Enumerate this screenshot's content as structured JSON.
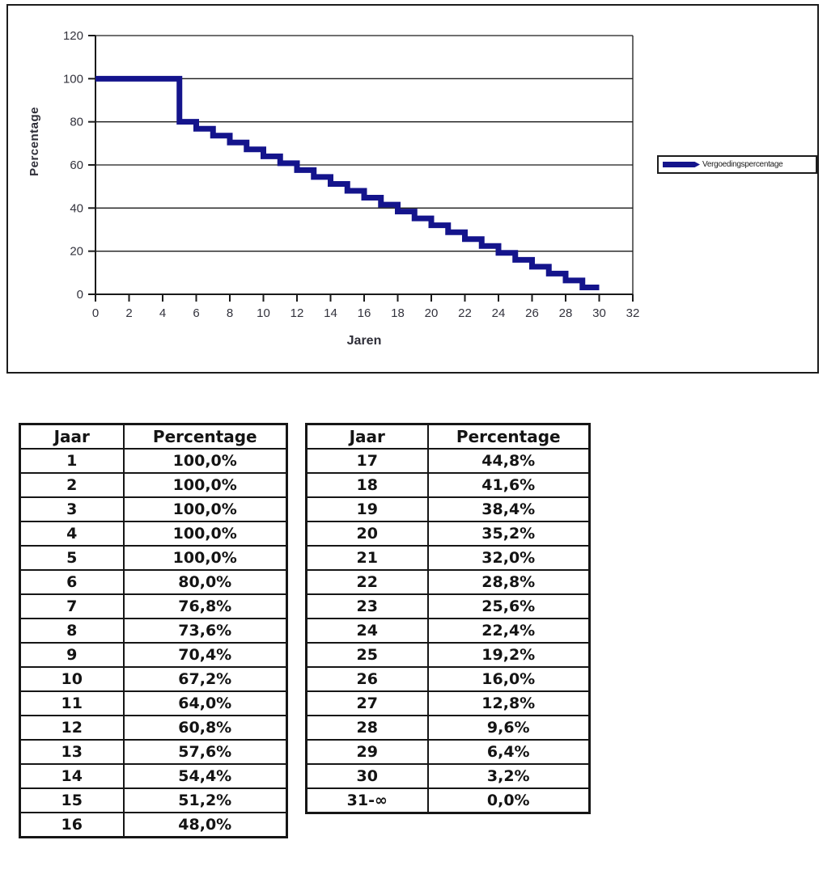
{
  "colors": {
    "series": "#14148C",
    "axis": "#1a1a1a",
    "tick_text": "#33333d"
  },
  "chart": {
    "y_axis_title": "Percentage",
    "x_axis_title": "Jaren",
    "legend_label": "Vergoedingspercentage"
  },
  "chart_data": {
    "type": "line",
    "title": "",
    "xlabel": "Jaren",
    "ylabel": "Percentage",
    "legend": [
      "Vergoedingspercentage"
    ],
    "legend_position": "right",
    "grid": true,
    "xlim": [
      0,
      32
    ],
    "ylim": [
      0,
      120
    ],
    "x_ticks": [
      0,
      2,
      4,
      6,
      8,
      10,
      12,
      14,
      16,
      18,
      20,
      22,
      24,
      26,
      28,
      30,
      32
    ],
    "y_ticks": [
      0,
      20,
      40,
      60,
      80,
      100,
      120
    ],
    "series": [
      {
        "name": "Vergoedingspercentage",
        "step": true,
        "values_by_year": [
          100,
          100,
          100,
          100,
          100,
          80,
          76.8,
          73.6,
          70.4,
          67.2,
          64,
          60.8,
          57.6,
          54.4,
          51.2,
          48,
          44.8,
          41.6,
          38.4,
          35.2,
          32,
          28.8,
          25.6,
          22.4,
          19.2,
          16,
          12.8,
          9.6,
          6.4,
          3.2
        ]
      }
    ]
  },
  "tables": [
    {
      "headers": [
        "Jaar",
        "Percentage"
      ],
      "rows": [
        [
          "1",
          "100,0%"
        ],
        [
          "2",
          "100,0%"
        ],
        [
          "3",
          "100,0%"
        ],
        [
          "4",
          "100,0%"
        ],
        [
          "5",
          "100,0%"
        ],
        [
          "6",
          "80,0%"
        ],
        [
          "7",
          "76,8%"
        ],
        [
          "8",
          "73,6%"
        ],
        [
          "9",
          "70,4%"
        ],
        [
          "10",
          "67,2%"
        ],
        [
          "11",
          "64,0%"
        ],
        [
          "12",
          "60,8%"
        ],
        [
          "13",
          "57,6%"
        ],
        [
          "14",
          "54,4%"
        ],
        [
          "15",
          "51,2%"
        ],
        [
          "16",
          "48,0%"
        ]
      ]
    },
    {
      "headers": [
        "Jaar",
        "Percentage"
      ],
      "rows": [
        [
          "17",
          "44,8%"
        ],
        [
          "18",
          "41,6%"
        ],
        [
          "19",
          "38,4%"
        ],
        [
          "20",
          "35,2%"
        ],
        [
          "21",
          "32,0%"
        ],
        [
          "22",
          "28,8%"
        ],
        [
          "23",
          "25,6%"
        ],
        [
          "24",
          "22,4%"
        ],
        [
          "25",
          "19,2%"
        ],
        [
          "26",
          "16,0%"
        ],
        [
          "27",
          "12,8%"
        ],
        [
          "28",
          "9,6%"
        ],
        [
          "29",
          "6,4%"
        ],
        [
          "30",
          "3,2%"
        ],
        [
          "31-∞",
          "0,0%"
        ]
      ]
    }
  ]
}
